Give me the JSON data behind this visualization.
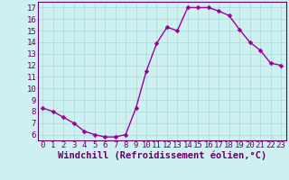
{
  "x": [
    0,
    1,
    2,
    3,
    4,
    5,
    6,
    7,
    8,
    9,
    10,
    11,
    12,
    13,
    14,
    15,
    16,
    17,
    18,
    19,
    20,
    21,
    22,
    23
  ],
  "y": [
    8.3,
    8.0,
    7.5,
    7.0,
    6.3,
    6.0,
    5.8,
    5.8,
    6.0,
    8.3,
    11.5,
    13.9,
    15.3,
    15.0,
    17.0,
    17.0,
    17.0,
    16.7,
    16.3,
    15.1,
    14.0,
    13.3,
    12.2,
    12.0
  ],
  "line_color": "#990099",
  "marker": "D",
  "marker_size": 2.5,
  "bg_color": "#cff0f0",
  "grid_color": "#aadddd",
  "xlabel": "Windchill (Refroidissement éolien,°C)",
  "xlabel_fontsize": 7.5,
  "ylim": [
    5.5,
    17.5
  ],
  "xlim": [
    -0.5,
    23.5
  ],
  "yticks": [
    6,
    7,
    8,
    9,
    10,
    11,
    12,
    13,
    14,
    15,
    16,
    17
  ],
  "xticks": [
    0,
    1,
    2,
    3,
    4,
    5,
    6,
    7,
    8,
    9,
    10,
    11,
    12,
    13,
    14,
    15,
    16,
    17,
    18,
    19,
    20,
    21,
    22,
    23
  ],
  "tick_label_color": "#660066",
  "tick_label_fontsize": 6.5,
  "spine_color": "#660066",
  "line_width": 1.0
}
